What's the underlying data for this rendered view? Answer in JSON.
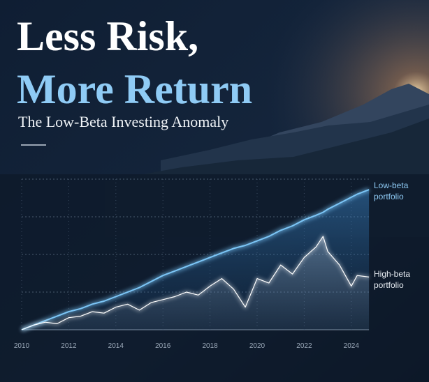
{
  "chart_data": {
    "type": "line",
    "title_line1": "Less Risk,",
    "title_line2": "More Return",
    "subtitle": "The Low-Beta Investing Anomaly",
    "x": [
      2010,
      2010.5,
      2011,
      2011.5,
      2012,
      2012.5,
      2013,
      2013.5,
      2014,
      2014.5,
      2015,
      2015.5,
      2016,
      2016.5,
      2017,
      2017.5,
      2018,
      2018.5,
      2019,
      2019.5,
      2020,
      2020.5,
      2021,
      2021.5,
      2022,
      2022.5,
      2022.8,
      2023,
      2023.5,
      2024,
      2024.25,
      2024.75
    ],
    "series": [
      {
        "name": "Low-beta portfolio",
        "color": "#7cc6f7",
        "values": [
          0,
          3,
          6,
          9,
          12,
          14,
          17,
          19,
          22,
          25,
          28,
          32,
          36,
          39,
          42,
          45,
          48,
          51,
          54,
          56,
          59,
          62,
          66,
          69,
          73,
          76,
          78,
          80,
          84,
          88,
          90,
          93
        ]
      },
      {
        "name": "High-beta portfolio",
        "color": "#ffffff",
        "values": [
          0,
          3,
          5,
          4,
          8,
          9,
          12,
          11,
          15,
          17,
          13,
          18,
          20,
          22,
          25,
          23,
          29,
          34,
          27,
          15,
          34,
          31,
          43,
          37,
          48,
          55,
          62,
          52,
          43,
          29,
          36,
          35
        ]
      }
    ],
    "xlim": [
      2010,
      2025
    ],
    "xticks": [
      2010,
      2012,
      2014,
      2016,
      2018,
      2020,
      2022,
      2024
    ],
    "ylim": [
      0,
      100
    ],
    "yticks": [
      0,
      25,
      50,
      75,
      100
    ],
    "grid": true
  }
}
